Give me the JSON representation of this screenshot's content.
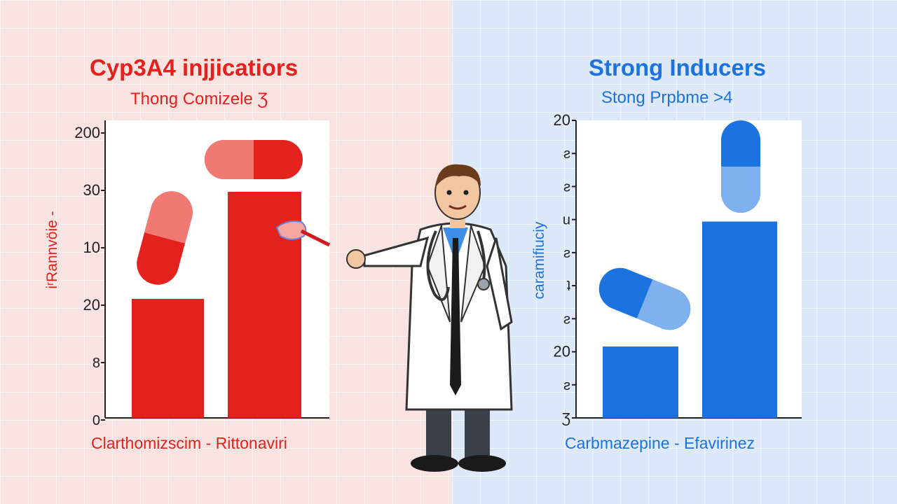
{
  "colors": {
    "left_accent": "#e3211d",
    "right_accent": "#1c73e0"
  },
  "chart_data": [
    {
      "type": "bar",
      "title": "Cyp3A4 injjicatiors",
      "subtitle": "Thong Comizele Ʒ",
      "xlabel": "Clarthomizscim - Rittonaviri",
      "ylabel": "iʳRannvöie -",
      "categories": [
        "Clarthomizscim",
        "Rittonaviri"
      ],
      "values": [
        0.4,
        0.76
      ],
      "value_unit": "fraction of plotted axis height",
      "tick_labels": [
        "0",
        "8",
        "20",
        "10",
        "30",
        "200"
      ],
      "pill_icons": [
        "capsule-icon",
        "capsule-icon"
      ]
    },
    {
      "type": "bar",
      "title": "Strong Inducers",
      "subtitle": "Stong Prpbme >4",
      "xlabel": "Carbmazepine - Efavirinez",
      "ylabel": "caramifiuciy",
      "categories": [
        "Carbmazepine",
        "Efavirinez"
      ],
      "values": [
        0.24,
        0.66
      ],
      "value_unit": "fraction of plotted axis height",
      "tick_labels": [
        "Ʒ",
        "ƨ",
        "20",
        "ƨ",
        "ʇ",
        "ƨ",
        "u",
        "ƨ",
        "ƨ",
        "20"
      ],
      "pill_icons": [
        "capsule-icon",
        "capsule-icon"
      ]
    }
  ],
  "illustration": {
    "figure": "doctor-pointing-illustration"
  }
}
